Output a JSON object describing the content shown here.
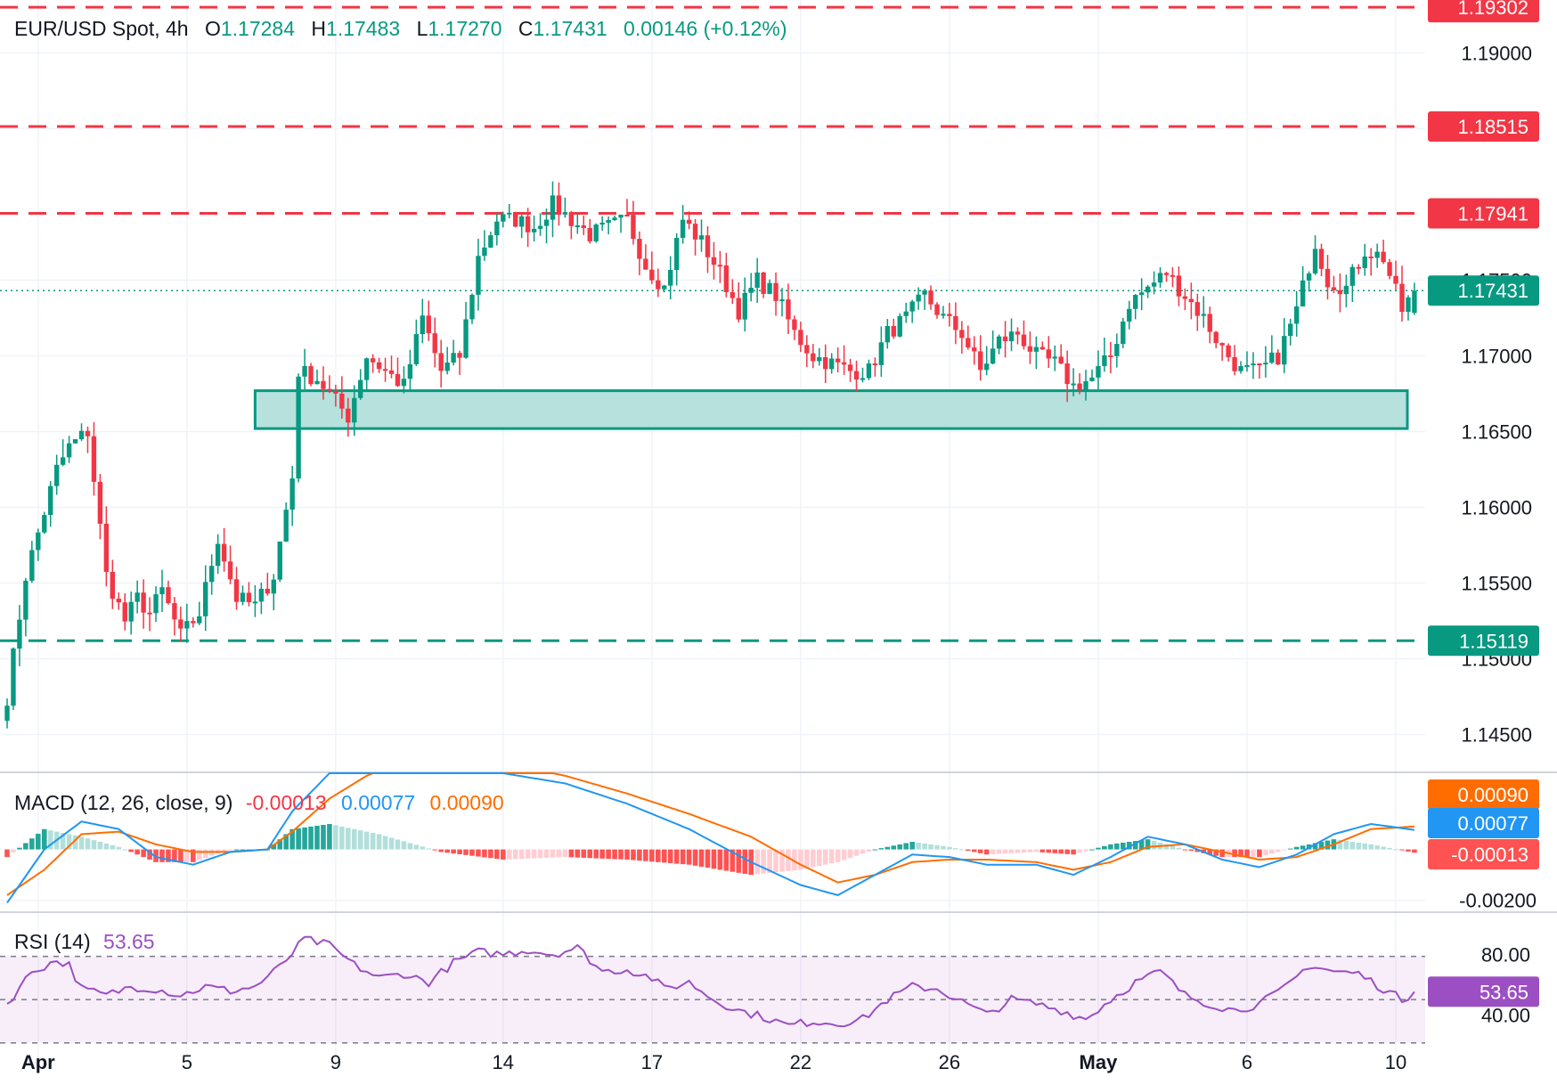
{
  "header": {
    "symbol": "EUR/USD Spot, 4h",
    "o_label": "O",
    "o_value": "1.17284",
    "h_label": "H",
    "h_value": "1.17483",
    "l_label": "L",
    "l_value": "1.17270",
    "c_label": "C",
    "c_value": "1.17431",
    "change": "0.00146 (+0.12%)"
  },
  "colors": {
    "up": "#089981",
    "down": "#f23645",
    "macd": "#2196f3",
    "signal": "#ff6d00",
    "rsi": "#9c4fc2",
    "zone_fill": "#b2dfdb",
    "zone_border": "#089981"
  },
  "chart_data": [
    {
      "type": "candlestick",
      "title": "EUR/USD Spot, 4h",
      "y_range": [
        1.1425,
        1.1935
      ],
      "y_ticks": [
        "1.19000",
        "1.18500",
        "1.17500",
        "1.17000",
        "1.16500",
        "1.16000",
        "1.15500",
        "1.15000",
        "1.14500"
      ],
      "x_tick_labels": [
        "Apr",
        "5",
        "9",
        "14",
        "17",
        "22",
        "26",
        "May",
        "6",
        "10"
      ],
      "current_price": "1.17431",
      "levels": [
        {
          "value": 1.19302,
          "label": "1.19302",
          "color": "#f23645",
          "style": "dashed"
        },
        {
          "value": 1.18515,
          "label": "1.18515",
          "color": "#f23645",
          "style": "dashed"
        },
        {
          "value": 1.17941,
          "label": "1.17941",
          "color": "#f23645",
          "style": "dashed"
        },
        {
          "value": 1.15119,
          "label": "1.15119",
          "color": "#089981",
          "style": "dashed"
        }
      ],
      "support_zone": [
        1.1652,
        1.1677
      ],
      "close_anchors": [
        [
          0,
          1.1475
        ],
        [
          3,
          1.1555
        ],
        [
          8,
          1.1625
        ],
        [
          10,
          1.164
        ],
        [
          13,
          1.165
        ],
        [
          16,
          1.1555
        ],
        [
          19,
          1.1525
        ],
        [
          21,
          1.154
        ],
        [
          23,
          1.153
        ],
        [
          25,
          1.1545
        ],
        [
          28,
          1.1515
        ],
        [
          31,
          1.153
        ],
        [
          34,
          1.158
        ],
        [
          37,
          1.154
        ],
        [
          40,
          1.1535
        ],
        [
          43,
          1.1555
        ],
        [
          46,
          1.162
        ],
        [
          47,
          1.169
        ],
        [
          50,
          1.1685
        ],
        [
          53,
          1.167
        ],
        [
          55,
          1.166
        ],
        [
          58,
          1.17
        ],
        [
          61,
          1.169
        ],
        [
          64,
          1.168
        ],
        [
          67,
          1.1725
        ],
        [
          70,
          1.169
        ],
        [
          73,
          1.17
        ],
        [
          76,
          1.1765
        ],
        [
          79,
          1.179
        ],
        [
          82,
          1.179
        ],
        [
          85,
          1.1785
        ],
        [
          88,
          1.18
        ],
        [
          91,
          1.179
        ],
        [
          94,
          1.178
        ],
        [
          97,
          1.1785
        ],
        [
          100,
          1.179
        ],
        [
          103,
          1.176
        ],
        [
          106,
          1.1745
        ],
        [
          109,
          1.179
        ],
        [
          112,
          1.1775
        ],
        [
          115,
          1.1755
        ],
        [
          118,
          1.173
        ],
        [
          121,
          1.175
        ],
        [
          124,
          1.174
        ],
        [
          127,
          1.1715
        ],
        [
          130,
          1.17
        ],
        [
          133,
          1.1695
        ],
        [
          136,
          1.169
        ],
        [
          139,
          1.169
        ],
        [
          142,
          1.1715
        ],
        [
          145,
          1.1725
        ],
        [
          148,
          1.174
        ],
        [
          151,
          1.1725
        ],
        [
          154,
          1.1715
        ],
        [
          157,
          1.169
        ],
        [
          160,
          1.171
        ],
        [
          163,
          1.1715
        ],
        [
          166,
          1.17
        ],
        [
          169,
          1.1695
        ],
        [
          172,
          1.168
        ],
        [
          175,
          1.1685
        ],
        [
          178,
          1.17
        ],
        [
          181,
          1.1735
        ],
        [
          184,
          1.1745
        ],
        [
          187,
          1.1755
        ],
        [
          190,
          1.174
        ],
        [
          193,
          1.1725
        ],
        [
          196,
          1.1705
        ],
        [
          199,
          1.169
        ],
        [
          202,
          1.169
        ],
        [
          205,
          1.17
        ],
        [
          208,
          1.173
        ],
        [
          211,
          1.1775
        ],
        [
          213,
          1.175
        ],
        [
          216,
          1.1745
        ],
        [
          219,
          1.177
        ],
        [
          222,
          1.1765
        ],
        [
          225,
          1.173
        ],
        [
          227,
          1.1743
        ]
      ],
      "last_candle": {
        "open": 1.17284,
        "high": 1.17483,
        "low": 1.1727,
        "close": 1.17431
      }
    },
    {
      "type": "macd",
      "title": "MACD (12, 26, close, 9)",
      "values": {
        "histogram": "-0.00013",
        "macd": "0.00077",
        "signal": "0.00090"
      },
      "axis_tags": [
        "0.00090",
        "0.00077",
        "-0.00013"
      ],
      "y_tick": "-0.00200",
      "macd_anchors": [
        [
          0,
          -0.0021
        ],
        [
          6,
          0.0
        ],
        [
          12,
          0.0011
        ],
        [
          18,
          0.0008
        ],
        [
          24,
          -0.0003
        ],
        [
          30,
          -0.0006
        ],
        [
          36,
          -0.0001
        ],
        [
          42,
          0.0
        ],
        [
          46,
          0.0015
        ],
        [
          52,
          0.003
        ],
        [
          60,
          0.0038
        ],
        [
          70,
          0.0036
        ],
        [
          80,
          0.003
        ],
        [
          90,
          0.0026
        ],
        [
          100,
          0.0018
        ],
        [
          110,
          0.0008
        ],
        [
          120,
          -0.0005
        ],
        [
          128,
          -0.0014
        ],
        [
          134,
          -0.0018
        ],
        [
          140,
          -0.001
        ],
        [
          146,
          -0.0002
        ],
        [
          152,
          -0.0003
        ],
        [
          158,
          -0.0006
        ],
        [
          166,
          -0.0006
        ],
        [
          172,
          -0.001
        ],
        [
          178,
          -0.0003
        ],
        [
          184,
          0.0005
        ],
        [
          190,
          0.0002
        ],
        [
          196,
          -0.0004
        ],
        [
          202,
          -0.0007
        ],
        [
          208,
          -0.0002
        ],
        [
          214,
          0.0006
        ],
        [
          220,
          0.001
        ],
        [
          227,
          0.00077
        ]
      ],
      "signal_anchors": [
        [
          0,
          -0.0018
        ],
        [
          6,
          -0.0008
        ],
        [
          12,
          0.0006
        ],
        [
          18,
          0.0007
        ],
        [
          24,
          0.0002
        ],
        [
          30,
          -0.0001
        ],
        [
          36,
          -0.0001
        ],
        [
          42,
          0.0
        ],
        [
          46,
          0.0007
        ],
        [
          52,
          0.002
        ],
        [
          60,
          0.0032
        ],
        [
          70,
          0.0037
        ],
        [
          80,
          0.0034
        ],
        [
          90,
          0.0029
        ],
        [
          100,
          0.0022
        ],
        [
          110,
          0.0014
        ],
        [
          120,
          0.0005
        ],
        [
          128,
          -0.0006
        ],
        [
          134,
          -0.0013
        ],
        [
          140,
          -0.001
        ],
        [
          146,
          -0.0005
        ],
        [
          152,
          -0.0004
        ],
        [
          158,
          -0.0004
        ],
        [
          166,
          -0.0005
        ],
        [
          172,
          -0.0008
        ],
        [
          178,
          -0.0005
        ],
        [
          184,
          0.0001
        ],
        [
          190,
          0.0002
        ],
        [
          196,
          -0.0001
        ],
        [
          202,
          -0.0004
        ],
        [
          208,
          -0.0003
        ],
        [
          214,
          0.0002
        ],
        [
          220,
          0.0008
        ],
        [
          227,
          0.0009
        ]
      ]
    },
    {
      "type": "rsi",
      "title": "RSI (14)",
      "value": "53.65",
      "y_ticks": [
        "80.00",
        "40.00"
      ],
      "band": [
        30,
        70
      ],
      "anchors": [
        [
          0,
          48
        ],
        [
          4,
          63
        ],
        [
          8,
          68
        ],
        [
          10,
          66
        ],
        [
          12,
          55
        ],
        [
          16,
          52
        ],
        [
          20,
          56
        ],
        [
          24,
          55
        ],
        [
          28,
          52
        ],
        [
          32,
          56
        ],
        [
          36,
          54
        ],
        [
          40,
          56
        ],
        [
          44,
          65
        ],
        [
          48,
          78
        ],
        [
          52,
          75
        ],
        [
          56,
          66
        ],
        [
          60,
          60
        ],
        [
          64,
          62
        ],
        [
          68,
          58
        ],
        [
          72,
          67
        ],
        [
          76,
          72
        ],
        [
          80,
          71
        ],
        [
          84,
          73
        ],
        [
          88,
          71
        ],
        [
          92,
          74
        ],
        [
          96,
          63
        ],
        [
          100,
          64
        ],
        [
          104,
          60
        ],
        [
          106,
          55
        ],
        [
          110,
          58
        ],
        [
          114,
          50
        ],
        [
          118,
          45
        ],
        [
          122,
          42
        ],
        [
          126,
          38
        ],
        [
          130,
          40
        ],
        [
          134,
          39
        ],
        [
          138,
          41
        ],
        [
          142,
          50
        ],
        [
          146,
          56
        ],
        [
          150,
          55
        ],
        [
          154,
          49
        ],
        [
          158,
          43
        ],
        [
          162,
          50
        ],
        [
          166,
          48
        ],
        [
          170,
          45
        ],
        [
          174,
          41
        ],
        [
          178,
          50
        ],
        [
          182,
          58
        ],
        [
          186,
          63
        ],
        [
          190,
          52
        ],
        [
          194,
          48
        ],
        [
          198,
          45
        ],
        [
          202,
          48
        ],
        [
          206,
          55
        ],
        [
          210,
          66
        ],
        [
          214,
          63
        ],
        [
          218,
          62
        ],
        [
          222,
          55
        ],
        [
          225,
          50
        ],
        [
          227,
          53.65
        ]
      ]
    }
  ]
}
